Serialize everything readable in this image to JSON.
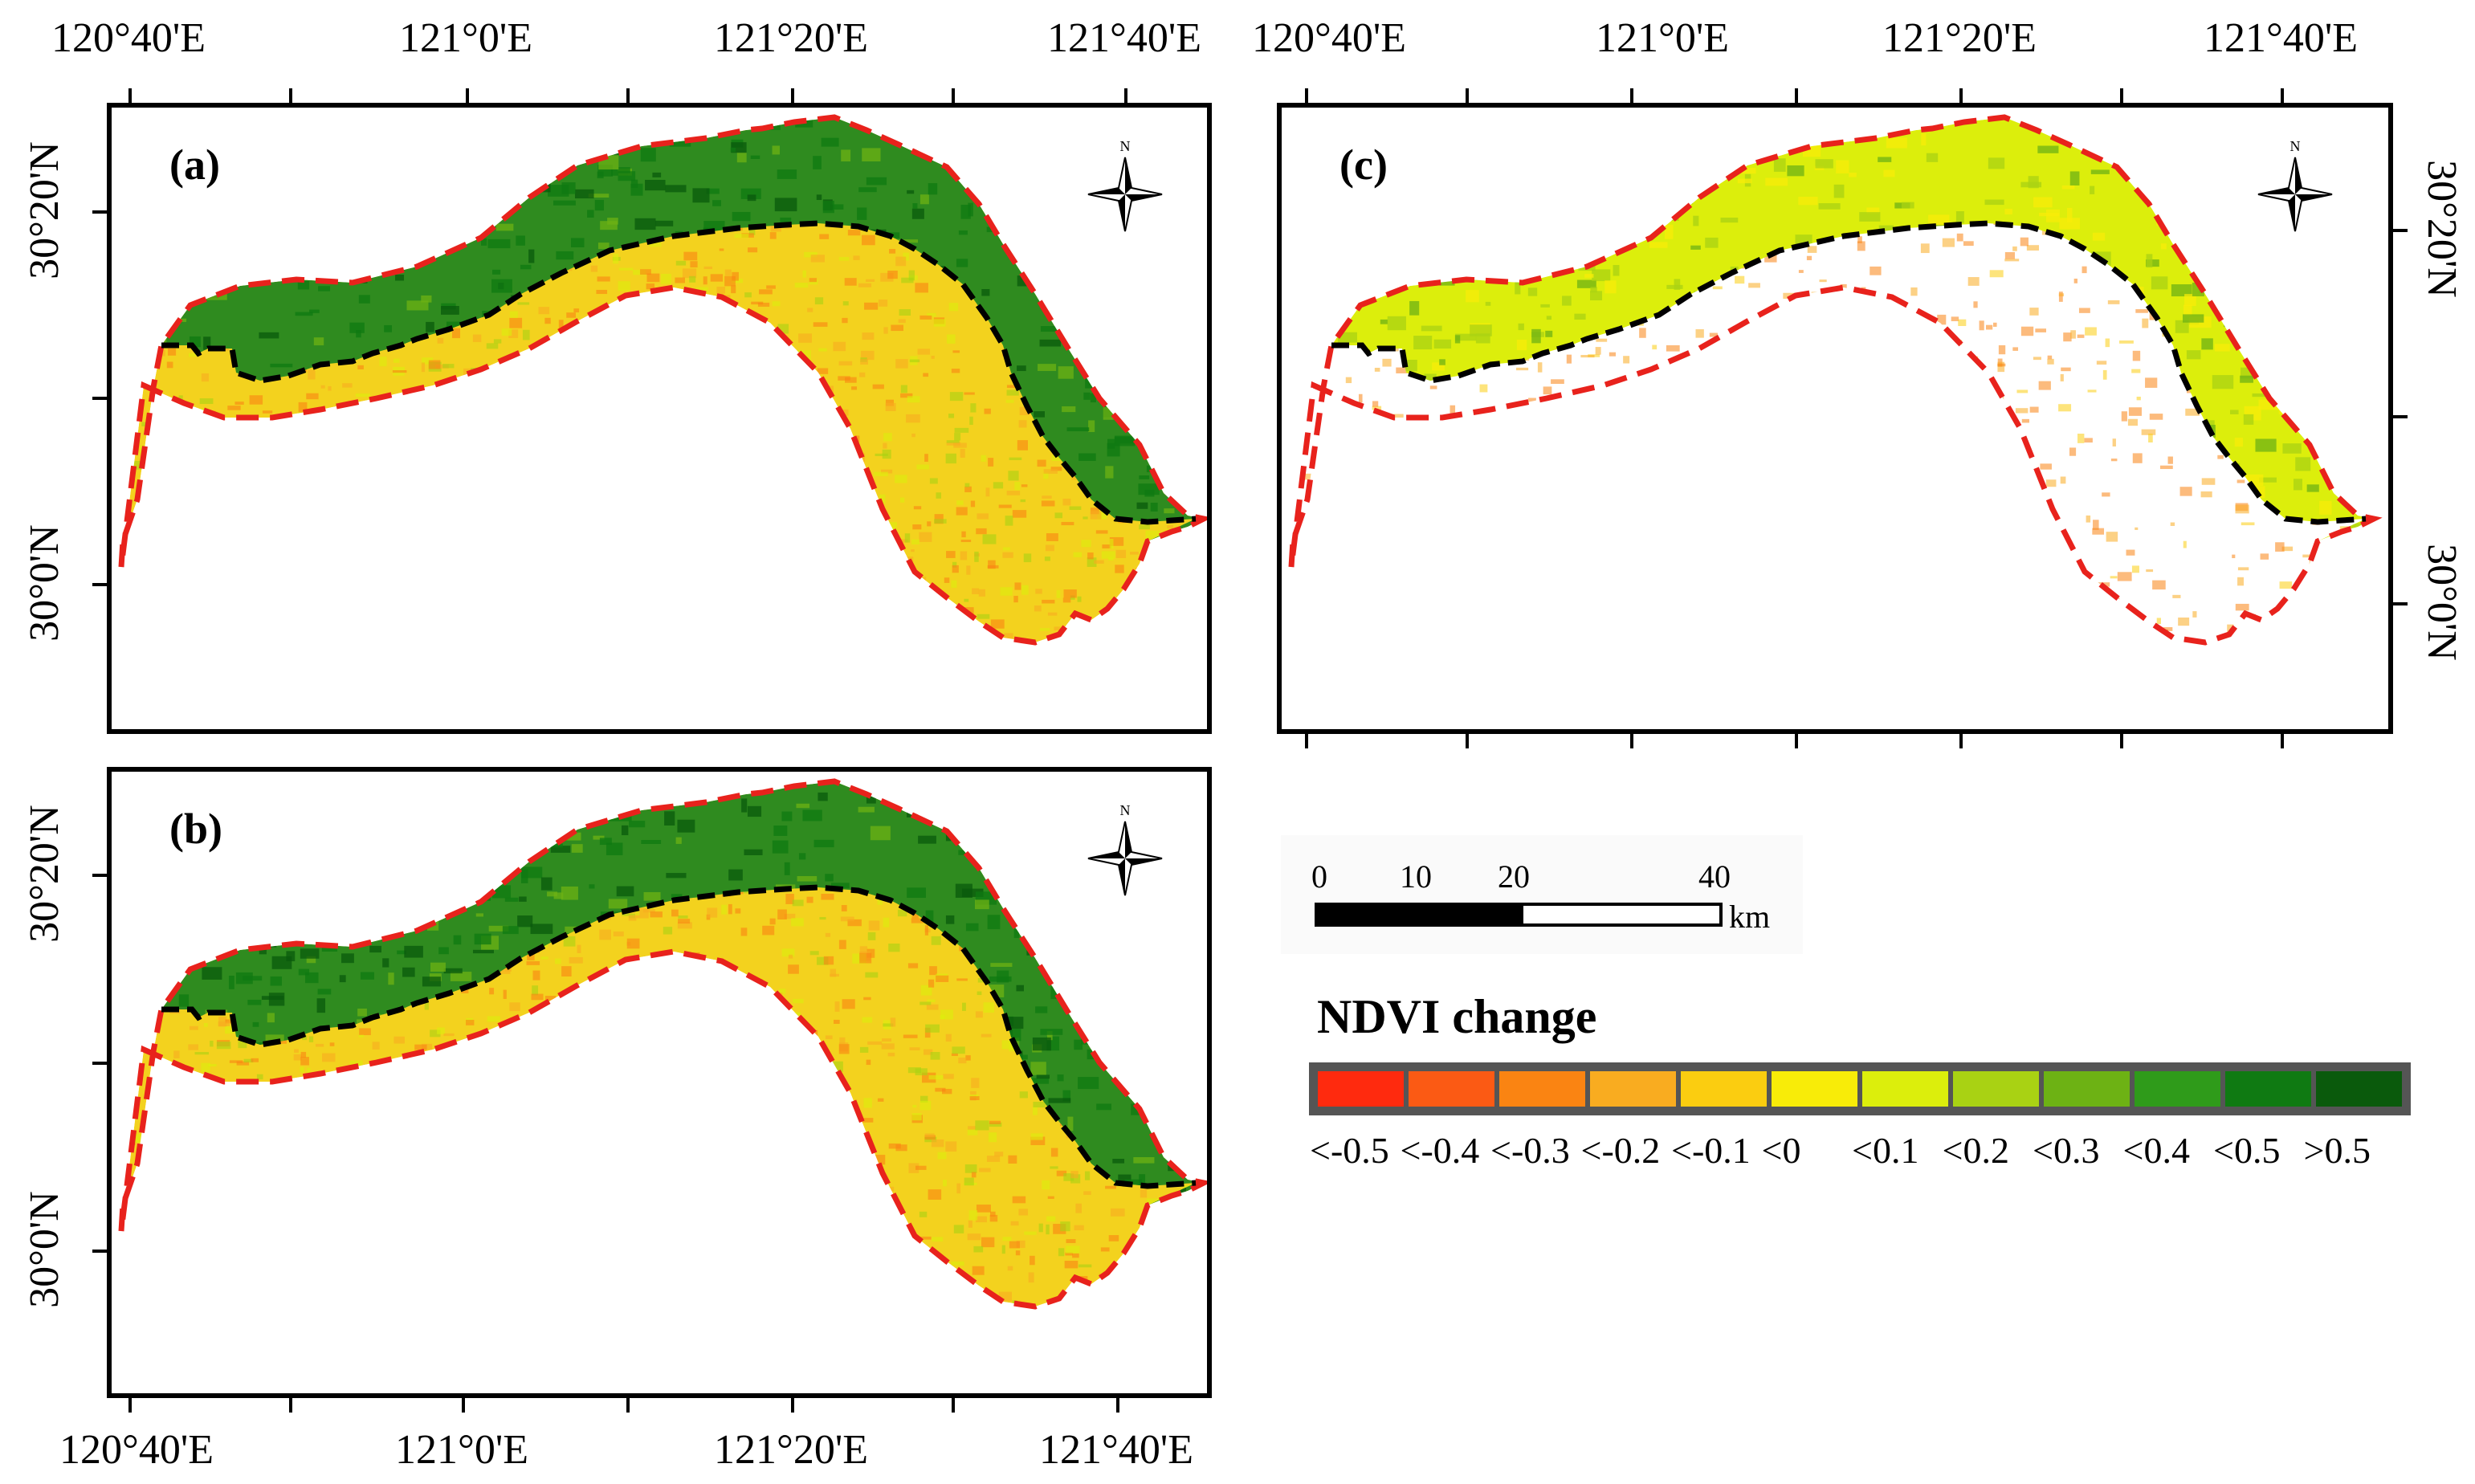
{
  "axes": {
    "lon_ticks": [
      "120°40'E",
      "121°0'E",
      "121°20'E",
      "121°40'E"
    ],
    "lat_ticks": [
      "30°20'N",
      "30°0'N"
    ]
  },
  "panels": [
    {
      "id": "a",
      "label": "(a)"
    },
    {
      "id": "b",
      "label": "(b)"
    },
    {
      "id": "c",
      "label": "(c)"
    }
  ],
  "north_arrow": {
    "label": "N"
  },
  "scale_bar": {
    "ticks": [
      "0",
      "10",
      "20",
      "40"
    ],
    "unit": "km"
  },
  "legend": {
    "title": "NDVI change",
    "classes": [
      {
        "label": "<-0.5",
        "color": "#ff2a0e"
      },
      {
        "label": "<-0.4",
        "color": "#fb5a14"
      },
      {
        "label": "<-0.3",
        "color": "#fa8412"
      },
      {
        "label": "<-0.2",
        "color": "#f9ac20"
      },
      {
        "label": "<-0.1",
        "color": "#fbcd10"
      },
      {
        "label": "<0",
        "color": "#f8ec08"
      },
      {
        "label": "<0.1",
        "color": "#dcee0c"
      },
      {
        "label": "<0.2",
        "color": "#a9d213"
      },
      {
        "label": "<0.3",
        "color": "#6db214"
      },
      {
        "label": "<0.4",
        "color": "#2f9b1a"
      },
      {
        "label": "<0.5",
        "color": "#0f7a12"
      },
      {
        "label": ">0.5",
        "color": "#0a5a0c"
      }
    ]
  },
  "colors": {
    "study_area_outline": "#e8221c",
    "dike_line": "#000000",
    "land_fill": "#f3d21e",
    "reclaimed_fill": "#2f8b1f"
  }
}
